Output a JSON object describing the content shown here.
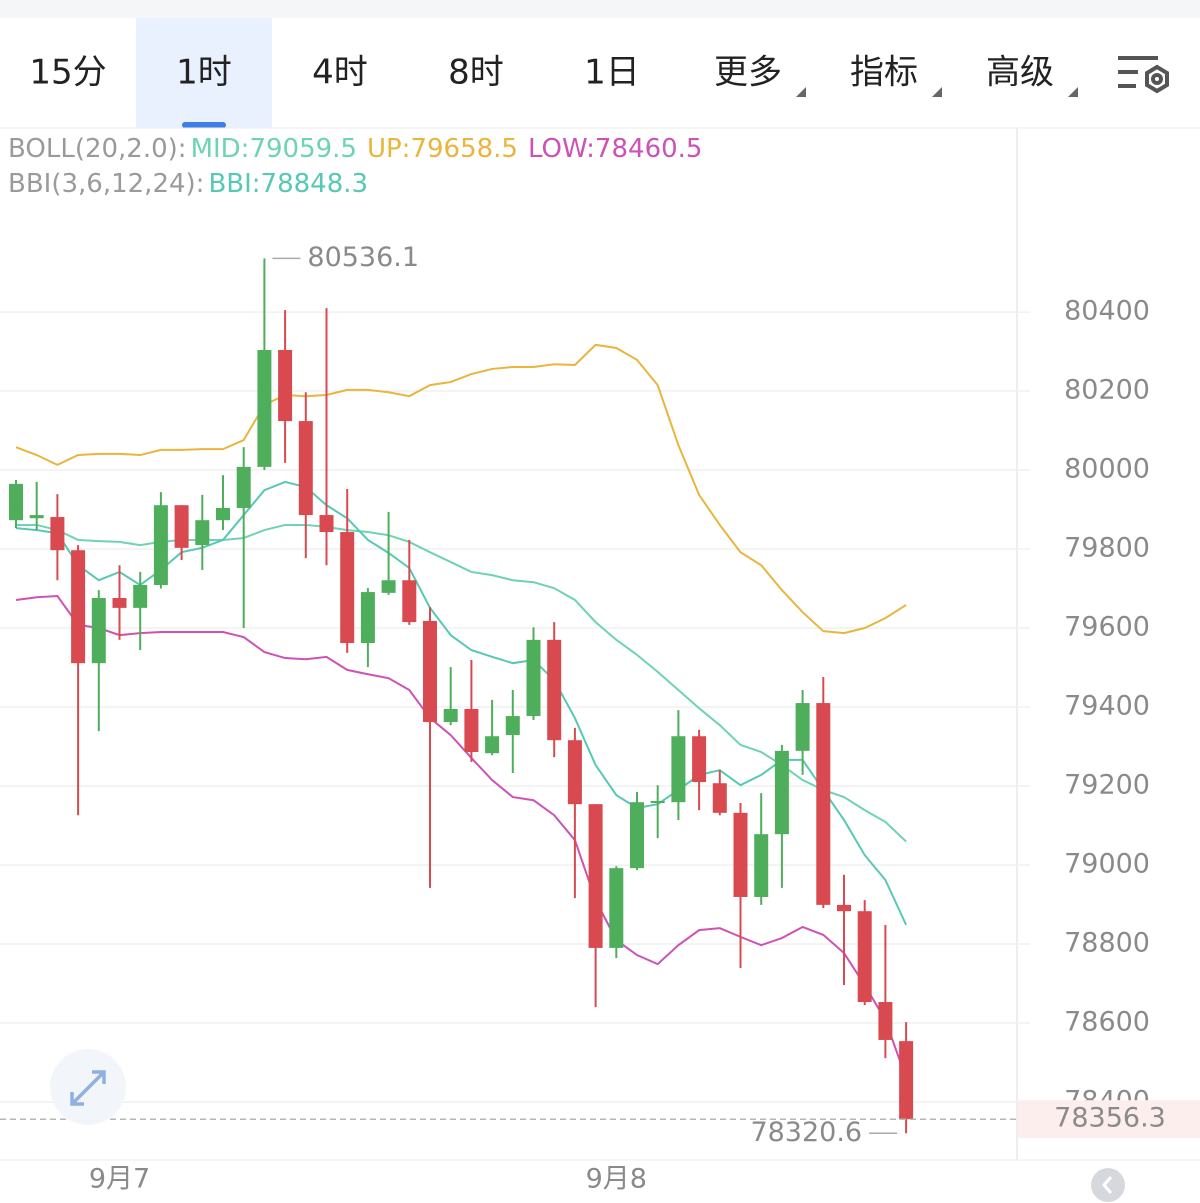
{
  "toolbar": {
    "tabs": [
      {
        "label": "15分"
      },
      {
        "label": "1时"
      },
      {
        "label": "4时"
      },
      {
        "label": "8时"
      },
      {
        "label": "1日"
      },
      {
        "label": "更多",
        "dropdown": true
      },
      {
        "label": "指标",
        "dropdown": true
      },
      {
        "label": "高级",
        "dropdown": true
      }
    ],
    "selected": 1
  },
  "chart_data": {
    "type": "candlestick",
    "indicator_labels": [
      "BOLL(20,2.0):",
      "BBI(3,6,12,24):"
    ],
    "categories": [
      null,
      null,
      null,
      null,
      null,
      "9月7",
      null,
      null,
      null,
      null,
      null,
      null,
      null,
      null,
      null,
      null,
      null,
      null,
      null,
      null,
      null,
      null,
      null,
      null,
      null,
      null,
      null,
      null,
      null,
      "9月8",
      null,
      null,
      null,
      null,
      null,
      null,
      null,
      null,
      null,
      null,
      null,
      null,
      null,
      null
    ],
    "open": [
      79873,
      79878,
      79881,
      79797,
      79511,
      79676,
      79651,
      79709,
      79911,
      79810,
      79873,
      79904,
      80008,
      80304,
      80124,
      79886,
      79843,
      79562,
      79689,
      79721,
      79618,
      79362,
      79395,
      79283,
      79329,
      79377,
      79570,
      79316,
      79154,
      78790,
      78992,
      79157,
      79159,
      79326,
      79207,
      79132,
      78919,
      79078,
      79289,
      79410,
      78899,
      78883,
      78653,
      78554
    ],
    "high": [
      79975,
      79970,
      79939,
      79810,
      79696,
      79759,
      79742,
      79944,
      79911,
      79937,
      79987,
      80058,
      80536.1,
      80405,
      80197,
      80410,
      79952,
      79701,
      79894,
      79823,
      79653,
      79501,
      79519,
      79418,
      79443,
      79602,
      79615,
      79347,
      79154,
      78997,
      79185,
      79202,
      79392,
      79342,
      79240,
      79157,
      79182,
      79304,
      79443,
      79476,
      78975,
      78911,
      78848,
      78602
    ],
    "low": [
      79853,
      79848,
      79721,
      79126,
      79339,
      79570,
      79544,
      79700,
      79772,
      79747,
      79848,
      79600,
      80000,
      80018,
      79777,
      79759,
      79537,
      79501,
      79684,
      79608,
      78942,
      79354,
      79261,
      79278,
      79233,
      79367,
      79273,
      78916,
      78640,
      78764,
      78987,
      79068,
      79114,
      79139,
      79126,
      78739,
      78899,
      78942,
      79228,
      78891,
      78696,
      78645,
      78511,
      78320.6
    ],
    "close": [
      79965,
      79886,
      79797,
      79511,
      79676,
      79651,
      79709,
      79911,
      79803,
      79873,
      79904,
      80008,
      80304,
      80124,
      79886,
      79843,
      79562,
      79691,
      79721,
      79615,
      79362,
      79395,
      79286,
      79326,
      79377,
      79570,
      79316,
      79154,
      78790,
      78992,
      79159,
      79162,
      79326,
      79210,
      79132,
      78919,
      79078,
      79289,
      79410,
      78899,
      78883,
      78653,
      78557,
      78356.3
    ],
    "up_color": "#4fae5c",
    "down_color": "#d84a50",
    "series": [
      {
        "name": "MID:79059.5",
        "color": "#6ed3b3",
        "values": [
          79861,
          79861,
          79848,
          79823,
          79820,
          79818,
          79810,
          79818,
          79823,
          79823,
          79823,
          79828,
          79848,
          79861,
          79861,
          79856,
          79848,
          79843,
          79835,
          79818,
          79792,
          79767,
          79742,
          79734,
          79721,
          79716,
          79701,
          79671,
          79615,
          79570,
          79532,
          79489,
          79443,
          79397,
          79354,
          79304,
          79286,
          79253,
          79215,
          79190,
          79172,
          79139,
          79109,
          79059.5
        ]
      },
      {
        "name": "UP:79658.5",
        "color": "#e9b53c",
        "values": [
          80058,
          80038,
          80013,
          80038,
          80041,
          80041,
          80038,
          80051,
          80051,
          80053,
          80053,
          80076,
          80165,
          80190,
          80187,
          80190,
          80203,
          80203,
          80197,
          80187,
          80215,
          80223,
          80243,
          80256,
          80261,
          80261,
          80268,
          80266,
          80317,
          80309,
          80279,
          80215,
          80063,
          79937,
          79861,
          79792,
          79759,
          79696,
          79640,
          79592,
          79587,
          79600,
          79625,
          79658.5
        ]
      },
      {
        "name": "LOW:78460.5",
        "color": "#cc52b6",
        "values": [
          79671,
          79678,
          79681,
          79608,
          79600,
          79582,
          79587,
          79590,
          79590,
          79590,
          79590,
          79577,
          79539,
          79524,
          79521,
          79527,
          79494,
          79483,
          79473,
          79443,
          79372,
          79329,
          79271,
          79215,
          79172,
          79164,
          79126,
          79063,
          78911,
          78810,
          78772,
          78749,
          78797,
          78835,
          78840,
          78818,
          78797,
          78815,
          78843,
          78823,
          78777,
          78696,
          78607,
          78460.5
        ]
      },
      {
        "name": "BBI:78848.3",
        "color": "#57c8b4",
        "values": [
          79853,
          79848,
          79840,
          79759,
          79721,
          79742,
          79709,
          79747,
          79792,
          79803,
          79823,
          79886,
          79949,
          79970,
          79957,
          79911,
          79878,
          79823,
          79790,
          79752,
          79651,
          79582,
          79544,
          79527,
          79511,
          79519,
          79468,
          79372,
          79253,
          79177,
          79144,
          79154,
          79190,
          79228,
          79240,
          79202,
          79228,
          79266,
          79266,
          79190,
          79114,
          79025,
          78962,
          78848.3
        ]
      }
    ],
    "ylim": [
      78253,
      80861
    ],
    "yticks": [
      78400,
      78600,
      78800,
      79000,
      79200,
      79400,
      79600,
      79800,
      80000,
      80200,
      80400
    ],
    "grid": true
  }
}
